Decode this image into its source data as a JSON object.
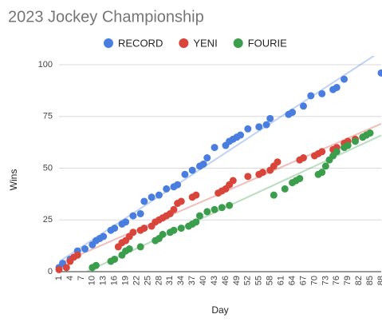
{
  "chart_data": {
    "type": "scatter",
    "title": "2023 Jockey Championship",
    "x_label": "Day",
    "y_label": "Wins",
    "xlim": [
      1,
      88
    ],
    "ylim": [
      0,
      100
    ],
    "xticks": [
      1,
      4,
      7,
      10,
      13,
      16,
      19,
      22,
      25,
      28,
      31,
      34,
      37,
      40,
      43,
      46,
      49,
      52,
      55,
      58,
      61,
      64,
      67,
      70,
      73,
      76,
      79,
      82,
      85,
      88
    ],
    "yticks": [
      0,
      25,
      50,
      75,
      100
    ],
    "grid": true,
    "trendline": true,
    "legend": "top",
    "series": [
      {
        "name": "RECORD",
        "color": "#4a7de0",
        "x": [
          1,
          2,
          4,
          6,
          8,
          10,
          11,
          12,
          13,
          15,
          16,
          18,
          19,
          21,
          23,
          24,
          26,
          28,
          30,
          32,
          33,
          35,
          37,
          39,
          40,
          41,
          43,
          46,
          47,
          48,
          49,
          50,
          52,
          55,
          57,
          58,
          63,
          64,
          67,
          69,
          72,
          75,
          76,
          78,
          88
        ],
        "values": [
          2,
          4,
          6,
          10,
          11,
          13,
          15,
          16,
          17,
          20,
          21,
          23,
          24,
          27,
          28,
          34,
          36,
          37,
          40,
          41,
          42,
          47,
          49,
          51,
          52,
          55,
          60,
          61,
          63,
          64,
          65,
          66,
          69,
          70,
          71,
          74,
          76,
          77,
          80,
          85,
          86,
          88,
          89,
          93,
          96
        ]
      },
      {
        "name": "YENI",
        "color": "#d9453a",
        "x": [
          1,
          3,
          4,
          5,
          6,
          17,
          18,
          19,
          20,
          21,
          23,
          24,
          26,
          27,
          28,
          29,
          30,
          31,
          32,
          33,
          34,
          37,
          38,
          44,
          45,
          46,
          47,
          48,
          52,
          55,
          56,
          58,
          59,
          60,
          66,
          67,
          70,
          71,
          72,
          75,
          76,
          78,
          79,
          81,
          83,
          84
        ],
        "values": [
          1,
          2,
          5,
          7,
          8,
          12,
          14,
          15,
          17,
          19,
          20,
          21,
          22,
          24,
          25,
          26,
          27,
          28,
          30,
          33,
          34,
          36,
          37,
          38,
          39,
          40,
          42,
          44,
          46,
          47,
          48,
          49,
          51,
          53,
          54,
          55,
          56,
          57,
          58,
          59,
          60,
          62,
          63,
          64,
          65,
          66
        ]
      },
      {
        "name": "FOURIE",
        "color": "#3a9e4c",
        "x": [
          10,
          11,
          15,
          16,
          18,
          19,
          20,
          23,
          27,
          28,
          29,
          31,
          32,
          34,
          36,
          37,
          38,
          39,
          41,
          43,
          45,
          47,
          59,
          62,
          64,
          65,
          66,
          71,
          72,
          73,
          74,
          75,
          76,
          78,
          79,
          81,
          83,
          84,
          85
        ],
        "values": [
          2,
          3,
          5,
          6,
          8,
          10,
          11,
          12,
          15,
          16,
          18,
          19,
          20,
          21,
          22,
          23,
          24,
          27,
          29,
          30,
          31,
          32,
          37,
          40,
          43,
          44,
          45,
          47,
          48,
          51,
          54,
          56,
          58,
          60,
          61,
          63,
          65,
          66,
          67
        ]
      }
    ]
  }
}
